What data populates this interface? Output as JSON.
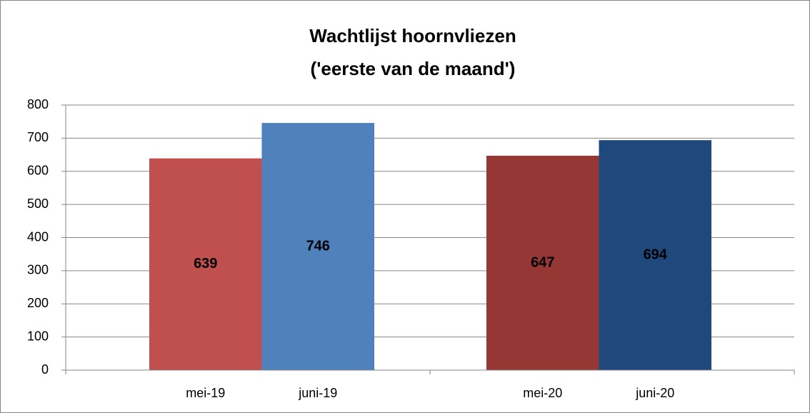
{
  "chart_data": {
    "type": "bar",
    "title": [
      "Wachtlijst hoornvliezen",
      "('eerste van de maand')"
    ],
    "categories": [
      "mei-19",
      "juni-19",
      "mei-20",
      "juni-20"
    ],
    "values": [
      639,
      746,
      647,
      694
    ],
    "colors": [
      "#c0504d",
      "#4f81bd",
      "#953735",
      "#1f497d"
    ],
    "ylim": [
      0,
      800
    ],
    "yticks": [
      0,
      100,
      200,
      300,
      400,
      500,
      600,
      700,
      800
    ],
    "grid": true,
    "data_labels": true
  }
}
